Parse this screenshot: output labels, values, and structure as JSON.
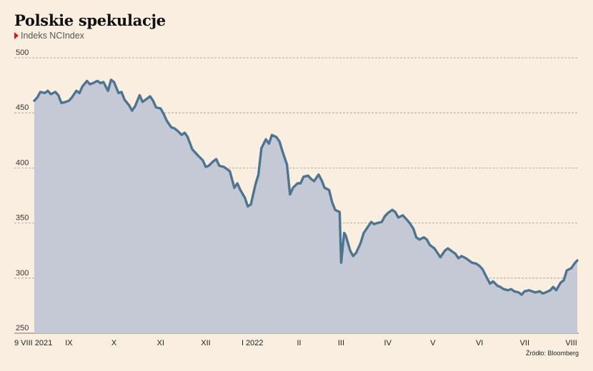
{
  "chart_data": {
    "type": "area",
    "title": "Polskie spekulacje",
    "subtitle": "Indeks NCIndex",
    "source": "Źródło: Bloomberg",
    "xlabel": "",
    "ylabel": "",
    "ylim": [
      250,
      500
    ],
    "yticks": [
      500,
      450,
      400,
      350,
      300,
      250
    ],
    "grid": true,
    "colors": {
      "line": "#4d7592",
      "fill": "#c5c8d5",
      "background": "#faeee1",
      "marker": "#d7191c"
    },
    "x_ticks": [
      {
        "label": "9 VIII 2021",
        "date": "2021-08-09"
      },
      {
        "label": "IX",
        "date": "2021-09-01"
      },
      {
        "label": "X",
        "date": "2021-10-01"
      },
      {
        "label": "XI",
        "date": "2021-11-01"
      },
      {
        "label": "XII",
        "date": "2021-12-01"
      },
      {
        "label": "I 2022",
        "date": "2022-01-01"
      },
      {
        "label": "II",
        "date": "2022-02-01"
      },
      {
        "label": "III",
        "date": "2022-03-01"
      },
      {
        "label": "IV",
        "date": "2022-04-01"
      },
      {
        "label": "V",
        "date": "2022-05-01"
      },
      {
        "label": "VI",
        "date": "2022-06-01"
      },
      {
        "label": "VII",
        "date": "2022-07-01"
      },
      {
        "label": "VIII",
        "date": "2022-08-01"
      }
    ],
    "series": [
      {
        "values": [
          [
            "2021-08-09",
            461
          ],
          [
            "2021-08-11",
            464
          ],
          [
            "2021-08-13",
            469
          ],
          [
            "2021-08-16",
            468
          ],
          [
            "2021-08-18",
            470
          ],
          [
            "2021-08-20",
            467
          ],
          [
            "2021-08-23",
            469
          ],
          [
            "2021-08-25",
            466
          ],
          [
            "2021-08-27",
            459
          ],
          [
            "2021-08-30",
            460
          ],
          [
            "2021-09-01",
            461
          ],
          [
            "2021-09-03",
            464
          ],
          [
            "2021-09-06",
            470
          ],
          [
            "2021-09-08",
            468
          ],
          [
            "2021-09-10",
            474
          ],
          [
            "2021-09-13",
            479
          ],
          [
            "2021-09-15",
            476
          ],
          [
            "2021-09-17",
            477
          ],
          [
            "2021-09-20",
            479
          ],
          [
            "2021-09-22",
            477
          ],
          [
            "2021-09-24",
            478
          ],
          [
            "2021-09-27",
            470
          ],
          [
            "2021-09-29",
            480
          ],
          [
            "2021-10-01",
            478
          ],
          [
            "2021-10-04",
            468
          ],
          [
            "2021-10-06",
            469
          ],
          [
            "2021-10-08",
            462
          ],
          [
            "2021-10-11",
            457
          ],
          [
            "2021-10-13",
            452
          ],
          [
            "2021-10-15",
            456
          ],
          [
            "2021-10-18",
            466
          ],
          [
            "2021-10-20",
            460
          ],
          [
            "2021-10-22",
            462
          ],
          [
            "2021-10-25",
            465
          ],
          [
            "2021-10-27",
            461
          ],
          [
            "2021-10-29",
            455
          ],
          [
            "2021-11-01",
            454
          ],
          [
            "2021-11-03",
            449
          ],
          [
            "2021-11-05",
            443
          ],
          [
            "2021-11-08",
            437
          ],
          [
            "2021-11-10",
            436
          ],
          [
            "2021-11-12",
            434
          ],
          [
            "2021-11-15",
            430
          ],
          [
            "2021-11-17",
            432
          ],
          [
            "2021-11-19",
            428
          ],
          [
            "2021-11-22",
            417
          ],
          [
            "2021-11-24",
            414
          ],
          [
            "2021-11-26",
            411
          ],
          [
            "2021-11-29",
            407
          ],
          [
            "2021-12-01",
            401
          ],
          [
            "2021-12-03",
            402
          ],
          [
            "2021-12-06",
            406
          ],
          [
            "2021-12-08",
            408
          ],
          [
            "2021-12-10",
            402
          ],
          [
            "2021-12-13",
            401
          ],
          [
            "2021-12-15",
            399
          ],
          [
            "2021-12-17",
            397
          ],
          [
            "2021-12-20",
            382
          ],
          [
            "2021-12-22",
            386
          ],
          [
            "2021-12-24",
            380
          ],
          [
            "2021-12-27",
            373
          ],
          [
            "2021-12-29",
            365
          ],
          [
            "2021-12-31",
            367
          ],
          [
            "2022-01-03",
            385
          ],
          [
            "2022-01-05",
            394
          ],
          [
            "2022-01-07",
            418
          ],
          [
            "2022-01-10",
            426
          ],
          [
            "2022-01-12",
            422
          ],
          [
            "2022-01-14",
            430
          ],
          [
            "2022-01-17",
            428
          ],
          [
            "2022-01-19",
            424
          ],
          [
            "2022-01-21",
            415
          ],
          [
            "2022-01-24",
            403
          ],
          [
            "2022-01-26",
            376
          ],
          [
            "2022-01-28",
            382
          ],
          [
            "2022-01-31",
            386
          ],
          [
            "2022-02-02",
            386
          ],
          [
            "2022-02-04",
            392
          ],
          [
            "2022-02-07",
            393
          ],
          [
            "2022-02-09",
            390
          ],
          [
            "2022-02-11",
            388
          ],
          [
            "2022-02-14",
            394
          ],
          [
            "2022-02-16",
            389
          ],
          [
            "2022-02-18",
            382
          ],
          [
            "2022-02-21",
            380
          ],
          [
            "2022-02-23",
            369
          ],
          [
            "2022-02-25",
            362
          ],
          [
            "2022-02-28",
            360
          ],
          [
            "2022-03-01",
            314
          ],
          [
            "2022-03-03",
            341
          ],
          [
            "2022-03-04",
            339
          ],
          [
            "2022-03-07",
            325
          ],
          [
            "2022-03-09",
            320
          ],
          [
            "2022-03-11",
            323
          ],
          [
            "2022-03-14",
            332
          ],
          [
            "2022-03-16",
            341
          ],
          [
            "2022-03-18",
            345
          ],
          [
            "2022-03-21",
            351
          ],
          [
            "2022-03-23",
            349
          ],
          [
            "2022-03-25",
            350
          ],
          [
            "2022-03-28",
            351
          ],
          [
            "2022-03-30",
            356
          ],
          [
            "2022-04-01",
            359
          ],
          [
            "2022-04-04",
            362
          ],
          [
            "2022-04-06",
            360
          ],
          [
            "2022-04-08",
            355
          ],
          [
            "2022-04-11",
            357
          ],
          [
            "2022-04-13",
            354
          ],
          [
            "2022-04-15",
            351
          ],
          [
            "2022-04-18",
            345
          ],
          [
            "2022-04-20",
            337
          ],
          [
            "2022-04-22",
            335
          ],
          [
            "2022-04-25",
            337
          ],
          [
            "2022-04-27",
            335
          ],
          [
            "2022-04-29",
            330
          ],
          [
            "2022-05-02",
            327
          ],
          [
            "2022-05-04",
            323
          ],
          [
            "2022-05-06",
            319
          ],
          [
            "2022-05-09",
            325
          ],
          [
            "2022-05-11",
            327
          ],
          [
            "2022-05-13",
            325
          ],
          [
            "2022-05-16",
            322
          ],
          [
            "2022-05-18",
            318
          ],
          [
            "2022-05-20",
            320
          ],
          [
            "2022-05-23",
            318
          ],
          [
            "2022-05-25",
            316
          ],
          [
            "2022-05-27",
            314
          ],
          [
            "2022-05-30",
            313
          ],
          [
            "2022-06-01",
            311
          ],
          [
            "2022-06-03",
            308
          ],
          [
            "2022-06-06",
            300
          ],
          [
            "2022-06-08",
            295
          ],
          [
            "2022-06-10",
            297
          ],
          [
            "2022-06-13",
            293
          ],
          [
            "2022-06-15",
            292
          ],
          [
            "2022-06-17",
            290
          ],
          [
            "2022-06-20",
            289
          ],
          [
            "2022-06-22",
            290
          ],
          [
            "2022-06-24",
            288
          ],
          [
            "2022-06-27",
            287
          ],
          [
            "2022-06-29",
            285
          ],
          [
            "2022-07-01",
            288
          ],
          [
            "2022-07-04",
            289
          ],
          [
            "2022-07-06",
            288
          ],
          [
            "2022-07-08",
            287
          ],
          [
            "2022-07-11",
            288
          ],
          [
            "2022-07-13",
            286
          ],
          [
            "2022-07-15",
            287
          ],
          [
            "2022-07-18",
            289
          ],
          [
            "2022-07-20",
            292
          ],
          [
            "2022-07-22",
            289
          ],
          [
            "2022-07-25",
            296
          ],
          [
            "2022-07-27",
            298
          ],
          [
            "2022-07-29",
            307
          ],
          [
            "2022-08-01",
            309
          ],
          [
            "2022-08-03",
            313
          ],
          [
            "2022-08-05",
            316
          ]
        ]
      }
    ]
  }
}
